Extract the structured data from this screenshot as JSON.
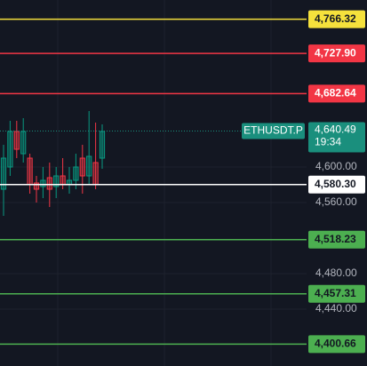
{
  "chart_data": {
    "type": "candlestick",
    "ylim": [
      4376,
      4788
    ],
    "yticks": [
      {
        "value": 4600,
        "label": "4,600.00"
      },
      {
        "value": 4560,
        "label": "4,560.00"
      },
      {
        "value": 4480,
        "label": "4,480.00"
      },
      {
        "value": 4440,
        "label": "4,440.00"
      }
    ],
    "grid": true,
    "up_color": "#089981",
    "down_color": "#f23645",
    "candles": {
      "open": [
        4575,
        4600,
        4640,
        4615,
        4610,
        4582,
        4578,
        4588,
        4578,
        4590,
        4580,
        4585,
        4610,
        4590,
        4605,
        4610
      ],
      "high": [
        4625,
        4652,
        4652,
        4655,
        4615,
        4590,
        4600,
        4605,
        4600,
        4610,
        4600,
        4615,
        4625,
        4663,
        4650,
        4648
      ],
      "low": [
        4545,
        4590,
        4610,
        4605,
        4570,
        4560,
        4565,
        4555,
        4565,
        4575,
        4570,
        4575,
        4570,
        4580,
        4575,
        4598
      ],
      "close": [
        4610,
        4640,
        4620,
        4640,
        4580,
        4575,
        4585,
        4575,
        4590,
        4580,
        4585,
        4600,
        4590,
        4612,
        4580,
        4640
      ]
    },
    "levels": {
      "values": [
        4766.32,
        4727.9,
        4682.64,
        4580.3,
        4518.23,
        4457.31,
        4400.66
      ],
      "value_labels": [
        "4,766.32",
        "4,727.90",
        "4,682.64",
        "4,580.30",
        "4,518.23",
        "4,457.31",
        "4,400.66"
      ],
      "colors": [
        "#f5e13c",
        "#f23645",
        "#f23645",
        "#ffffff",
        "#4caf50",
        "#4caf50",
        "#4caf50"
      ]
    },
    "last_price": {
      "symbol": "ETHUSDT.P",
      "value": 4640.49,
      "value_label": "4,640.49",
      "countdown": "19:34",
      "color": "#1a8f7d"
    }
  }
}
